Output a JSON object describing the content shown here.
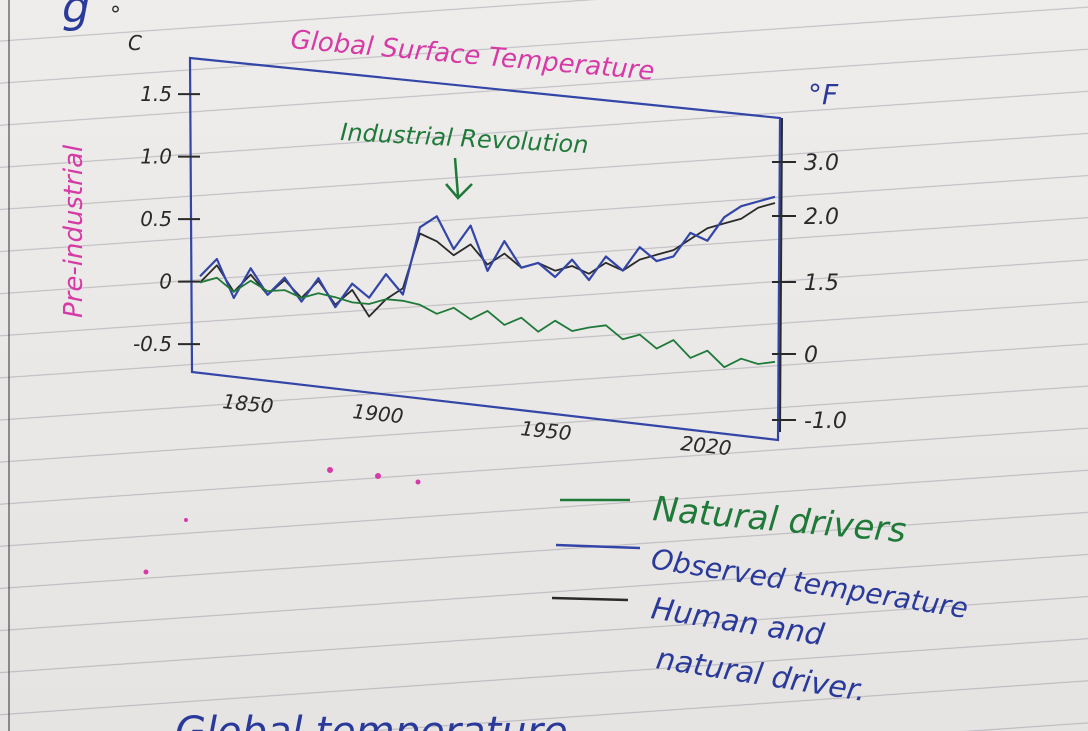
{
  "heading_fragment": "g",
  "degree_c": "°",
  "unit_c": "C",
  "chart_data": {
    "type": "line",
    "title": "Global Surface Temperature",
    "ylabel_left": "Pre-industrial",
    "unit_left": "°C",
    "unit_right": "°F",
    "left_ticks": [
      "1.5",
      "1.0",
      "0.5",
      "0",
      "-0.5"
    ],
    "right_ticks": [
      "3.0",
      "2.0",
      "1.5",
      "0",
      "-1.0"
    ],
    "x_ticks": [
      "1850",
      "1900",
      "1950",
      "2020"
    ],
    "xlim": [
      1850,
      2020
    ],
    "ylim": [
      -0.5,
      1.5
    ],
    "annotation": "Industrial Revolution",
    "annotation_x": 1920,
    "series": [
      {
        "name": "Natural drivers",
        "color": "#1f7a3a",
        "x": [
          1850,
          1855,
          1860,
          1865,
          1870,
          1875,
          1880,
          1885,
          1890,
          1895,
          1900,
          1905,
          1910,
          1915,
          1920,
          1925,
          1930,
          1935,
          1940,
          1945,
          1950,
          1955,
          1960,
          1965,
          1970,
          1975,
          1980,
          1985,
          1990,
          1995,
          2000,
          2005,
          2010,
          2015,
          2020
        ],
        "values": [
          0.0,
          0.05,
          -0.05,
          0.05,
          -0.02,
          0.0,
          -0.05,
          0.0,
          -0.02,
          -0.05,
          -0.05,
          0.0,
          0.0,
          -0.02,
          -0.08,
          -0.02,
          -0.1,
          -0.02,
          -0.12,
          -0.05,
          -0.15,
          -0.05,
          -0.12,
          -0.08,
          -0.05,
          -0.15,
          -0.1,
          -0.2,
          -0.12,
          -0.25,
          -0.18,
          -0.3,
          -0.22,
          -0.25,
          -0.22
        ]
      },
      {
        "name": "Observed temperature",
        "color": "#3346a8",
        "x": [
          1850,
          1855,
          1860,
          1865,
          1870,
          1875,
          1880,
          1885,
          1890,
          1895,
          1900,
          1905,
          1910,
          1915,
          1920,
          1925,
          1930,
          1935,
          1940,
          1945,
          1950,
          1955,
          1960,
          1965,
          1970,
          1975,
          1980,
          1985,
          1990,
          1995,
          2000,
          2005,
          2010,
          2015,
          2020
        ],
        "values": [
          0.05,
          0.2,
          -0.1,
          0.15,
          -0.05,
          0.1,
          -0.08,
          0.12,
          -0.1,
          0.1,
          0.0,
          0.2,
          0.05,
          0.6,
          0.7,
          0.45,
          0.65,
          0.3,
          0.55,
          0.35,
          0.4,
          0.3,
          0.45,
          0.3,
          0.5,
          0.4,
          0.6,
          0.5,
          0.55,
          0.75,
          0.7,
          0.9,
          1.0,
          1.05,
          1.1
        ]
      },
      {
        "name": "Human and natural drivers",
        "color": "#2a2a2a",
        "x": [
          1850,
          1855,
          1860,
          1865,
          1870,
          1875,
          1880,
          1885,
          1890,
          1895,
          1900,
          1905,
          1910,
          1915,
          1920,
          1925,
          1930,
          1935,
          1940,
          1945,
          1950,
          1955,
          1960,
          1965,
          1970,
          1975,
          1980,
          1985,
          1990,
          1995,
          2000,
          2005,
          2010,
          2015,
          2020
        ],
        "values": [
          0.0,
          0.15,
          -0.05,
          0.1,
          -0.05,
          0.08,
          -0.05,
          0.1,
          -0.08,
          0.05,
          -0.15,
          0.0,
          0.1,
          0.55,
          0.5,
          0.4,
          0.5,
          0.35,
          0.45,
          0.35,
          0.4,
          0.35,
          0.4,
          0.35,
          0.45,
          0.4,
          0.5,
          0.55,
          0.6,
          0.7,
          0.8,
          0.85,
          0.9,
          1.0,
          1.05
        ]
      }
    ]
  },
  "legend": [
    {
      "label": "Natural drivers",
      "color": "#1f7a3a"
    },
    {
      "label": "Observed temperature",
      "color": "#3346a8"
    },
    {
      "label": "Human and",
      "color": "#2a2a2a",
      "line2": "natural driver."
    }
  ],
  "footer_text": "Global temperature"
}
